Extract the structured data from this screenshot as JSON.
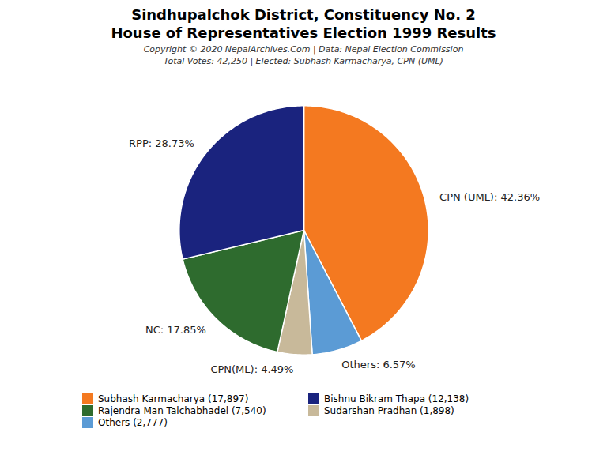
{
  "chart_data": {
    "type": "pie",
    "title": "Sindhupalchok District, Constituency No. 2",
    "subtitle": "House of Representatives Election 1999 Results",
    "annotations": [
      "Copyright © 2020 NepalArchives.Com | Data: Nepal Election Commission",
      "Total Votes: 42,250 | Elected: Subhash Karmacharya, CPN (UML)"
    ],
    "categories": [
      "CPN (UML)",
      "Others",
      "CPN(ML)",
      "NC",
      "RPP"
    ],
    "values": [
      42.36,
      6.57,
      4.49,
      17.85,
      28.73
    ],
    "value_labels": [
      "CPN (UML): 42.36%",
      "Others: 6.57%",
      "CPN(ML): 4.49%",
      "NC: 17.85%",
      "RPP: 28.73%"
    ],
    "colors": [
      "#f47920",
      "#5b9bd5",
      "#c8b99a",
      "#2e6b2e",
      "#1a237e"
    ],
    "data_labels": true,
    "legend": "bottom",
    "legend_entries": [
      {
        "label": "Subhash Karmacharya (17,897)",
        "color": "#f47920"
      },
      {
        "label": "Rajendra Man Talchabhadel (7,540)",
        "color": "#2e6b2e"
      },
      {
        "label": "Others (2,777)",
        "color": "#5b9bd5"
      },
      {
        "label": "Bishnu Bikram Thapa (12,138)",
        "color": "#1a237e"
      },
      {
        "label": "Sudarshan Pradhan (1,898)",
        "color": "#c8b99a"
      }
    ]
  }
}
